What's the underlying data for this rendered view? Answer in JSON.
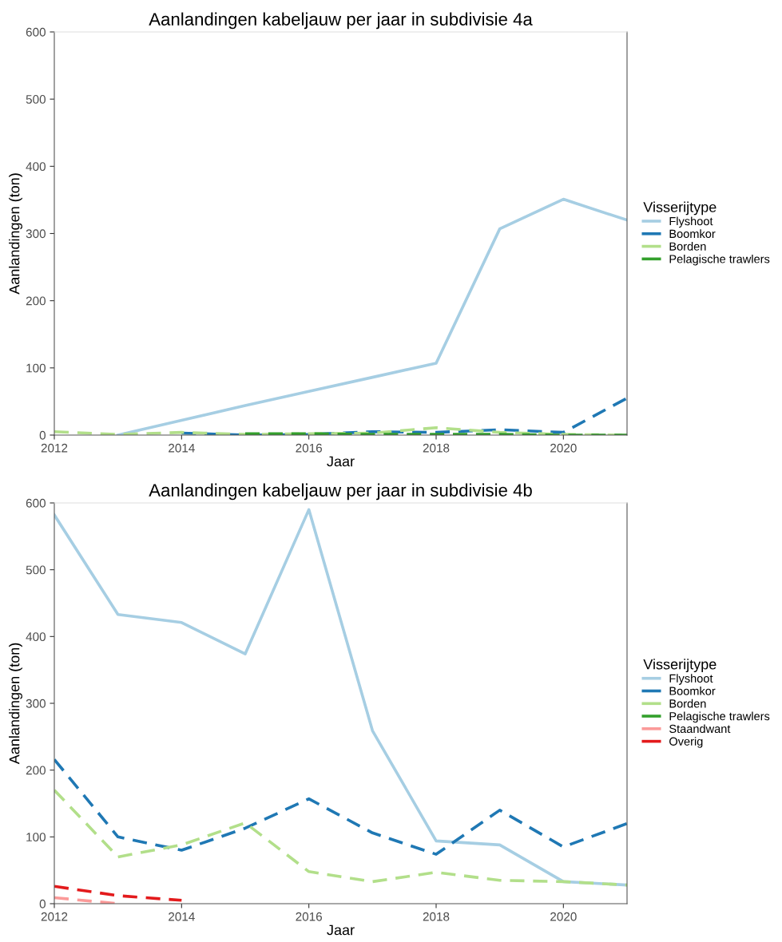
{
  "chart_data": [
    {
      "type": "line",
      "title": "Aanlandingen kabeljauw per jaar in subdivisie 4a",
      "xlabel": "Jaar",
      "ylabel": "Aanlandingen (ton)",
      "legend_title": "Visserijtype",
      "legend": "right",
      "grid": false,
      "marker": "none",
      "x": [
        2012,
        2013,
        2014,
        2015,
        2016,
        2017,
        2018,
        2019,
        2020,
        2021
      ],
      "xlim": [
        2012,
        2021
      ],
      "xticks": [
        2012,
        2014,
        2016,
        2018,
        2020
      ],
      "ylim": [
        0,
        600
      ],
      "yticks": [
        0,
        100,
        200,
        300,
        400,
        500,
        600
      ],
      "series": [
        {
          "name": "Flyshoot",
          "color": "#a6cee3",
          "line_style": "solid",
          "values": [
            null,
            0,
            22,
            44,
            65,
            86,
            107,
            307,
            351,
            320
          ]
        },
        {
          "name": "Boomkor",
          "color": "#1f78b4",
          "line_style": "dashed",
          "values": [
            null,
            null,
            3,
            0,
            1,
            5,
            4,
            8,
            4,
            55
          ]
        },
        {
          "name": "Borden",
          "color": "#b2df8a",
          "line_style": "dashed",
          "values": [
            5,
            1,
            4,
            1,
            2,
            3,
            11,
            4,
            1,
            0
          ]
        },
        {
          "name": "Pelagische trawlers",
          "color": "#33a02c",
          "line_style": "dashed",
          "values": [
            null,
            null,
            null,
            2,
            2,
            1,
            1,
            1,
            0,
            0
          ]
        }
      ]
    },
    {
      "type": "line",
      "title": "Aanlandingen kabeljauw per jaar in subdivisie 4b",
      "xlabel": "Jaar",
      "ylabel": "Aanlandingen (ton)",
      "legend_title": "Visserijtype",
      "legend": "right",
      "grid": false,
      "marker": "none",
      "x": [
        2012,
        2013,
        2014,
        2015,
        2016,
        2017,
        2018,
        2019,
        2020,
        2021
      ],
      "xlim": [
        2012,
        2021
      ],
      "xticks": [
        2012,
        2014,
        2016,
        2018,
        2020
      ],
      "ylim": [
        0,
        600
      ],
      "yticks": [
        0,
        100,
        200,
        300,
        400,
        500,
        600
      ],
      "series": [
        {
          "name": "Flyshoot",
          "color": "#a6cee3",
          "line_style": "solid",
          "values": [
            582,
            433,
            421,
            374,
            590,
            259,
            94,
            88,
            33,
            28
          ]
        },
        {
          "name": "Boomkor",
          "color": "#1f78b4",
          "line_style": "dashed",
          "values": [
            216,
            100,
            80,
            113,
            157,
            106,
            74,
            140,
            85,
            120
          ]
        },
        {
          "name": "Borden",
          "color": "#b2df8a",
          "line_style": "dashed",
          "values": [
            170,
            70,
            88,
            121,
            48,
            33,
            47,
            35,
            33,
            28
          ]
        },
        {
          "name": "Pelagische trawlers",
          "color": "#33a02c",
          "line_style": "dashed",
          "values": [
            null,
            null,
            null,
            null,
            null,
            null,
            null,
            null,
            null,
            null
          ]
        },
        {
          "name": "Staandwant",
          "color": "#fb9a99",
          "line_style": "dashed",
          "values": [
            9,
            0,
            null,
            null,
            null,
            null,
            null,
            null,
            null,
            null
          ]
        },
        {
          "name": "Overig",
          "color": "#e31a1c",
          "line_style": "dashed",
          "values": [
            26,
            12,
            5,
            null,
            null,
            null,
            null,
            null,
            null,
            null
          ]
        }
      ]
    }
  ]
}
